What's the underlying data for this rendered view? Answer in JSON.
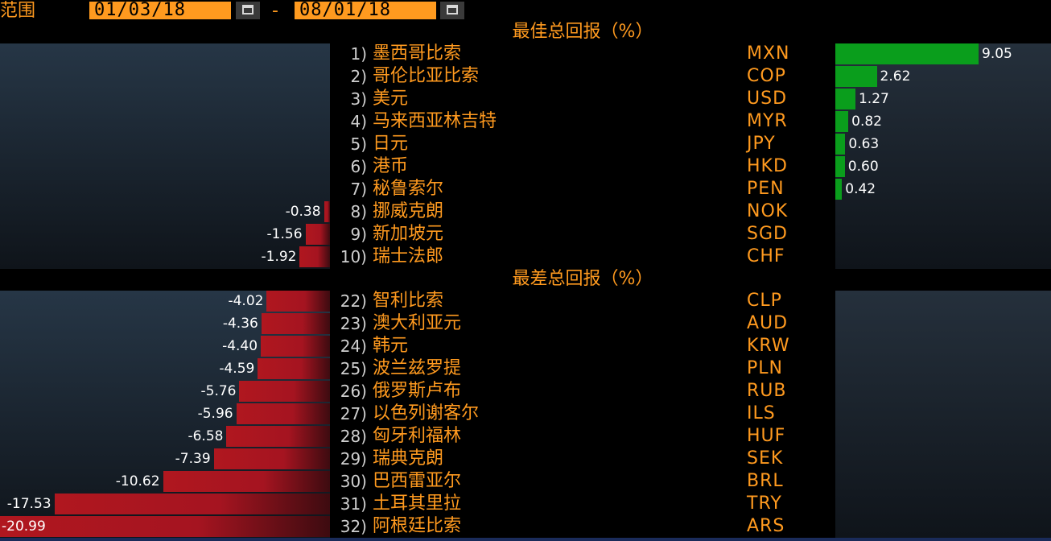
{
  "range": {
    "label": "范围",
    "start": "01/03/18",
    "end": "08/01/18",
    "separator": "-"
  },
  "best": {
    "title": "最佳总回报（%）",
    "rows": [
      {
        "rank": "1)",
        "name": "墨西哥比索",
        "code": "MXN",
        "value": "9.05",
        "num": 9.05
      },
      {
        "rank": "2)",
        "name": "哥伦比亚比索",
        "code": "COP",
        "value": "2.62",
        "num": 2.62
      },
      {
        "rank": "3)",
        "name": "美元",
        "code": "USD",
        "value": "1.27",
        "num": 1.27
      },
      {
        "rank": "4)",
        "name": "马来西亚林吉特",
        "code": "MYR",
        "value": "0.82",
        "num": 0.82
      },
      {
        "rank": "5)",
        "name": "日元",
        "code": "JPY",
        "value": "0.63",
        "num": 0.63
      },
      {
        "rank": "6)",
        "name": "港币",
        "code": "HKD",
        "value": "0.60",
        "num": 0.6
      },
      {
        "rank": "7)",
        "name": "秘鲁索尔",
        "code": "PEN",
        "value": "0.42",
        "num": 0.42
      },
      {
        "rank": "8)",
        "name": "挪威克朗",
        "code": "NOK",
        "value": "-0.38",
        "num": -0.38
      },
      {
        "rank": "9)",
        "name": "新加坡元",
        "code": "SGD",
        "value": "-1.56",
        "num": -1.56
      },
      {
        "rank": "10)",
        "name": "瑞士法郎",
        "code": "CHF",
        "value": "-1.92",
        "num": -1.92
      }
    ]
  },
  "worst": {
    "title": "最差总回报（%）",
    "rows": [
      {
        "rank": "22)",
        "name": "智利比索",
        "code": "CLP",
        "value": "-4.02",
        "num": -4.02
      },
      {
        "rank": "23)",
        "name": "澳大利亚元",
        "code": "AUD",
        "value": "-4.36",
        "num": -4.36
      },
      {
        "rank": "24)",
        "name": "韩元",
        "code": "KRW",
        "value": "-4.40",
        "num": -4.4
      },
      {
        "rank": "25)",
        "name": "波兰兹罗提",
        "code": "PLN",
        "value": "-4.59",
        "num": -4.59
      },
      {
        "rank": "26)",
        "name": "俄罗斯卢布",
        "code": "RUB",
        "value": "-5.76",
        "num": -5.76
      },
      {
        "rank": "27)",
        "name": "以色列谢客尔",
        "code": "ILS",
        "value": "-5.96",
        "num": -5.96
      },
      {
        "rank": "28)",
        "name": "匈牙利福林",
        "code": "HUF",
        "value": "-6.58",
        "num": -6.58
      },
      {
        "rank": "29)",
        "name": "瑞典克朗",
        "code": "SEK",
        "value": "-7.39",
        "num": -7.39
      },
      {
        "rank": "30)",
        "name": "巴西雷亚尔",
        "code": "BRL",
        "value": "-10.62",
        "num": -10.62
      },
      {
        "rank": "31)",
        "name": "土耳其里拉",
        "code": "TRY",
        "value": "-17.53",
        "num": -17.53
      },
      {
        "rank": "32)",
        "name": "阿根廷比索",
        "code": "ARS",
        "value": "-20.99",
        "num": -20.99
      }
    ]
  },
  "icons": {
    "calendar": "calendar-icon"
  },
  "colors": {
    "accent": "#ff9a1f",
    "positive": "#0a9e1c",
    "negative": "#b0171f"
  }
}
